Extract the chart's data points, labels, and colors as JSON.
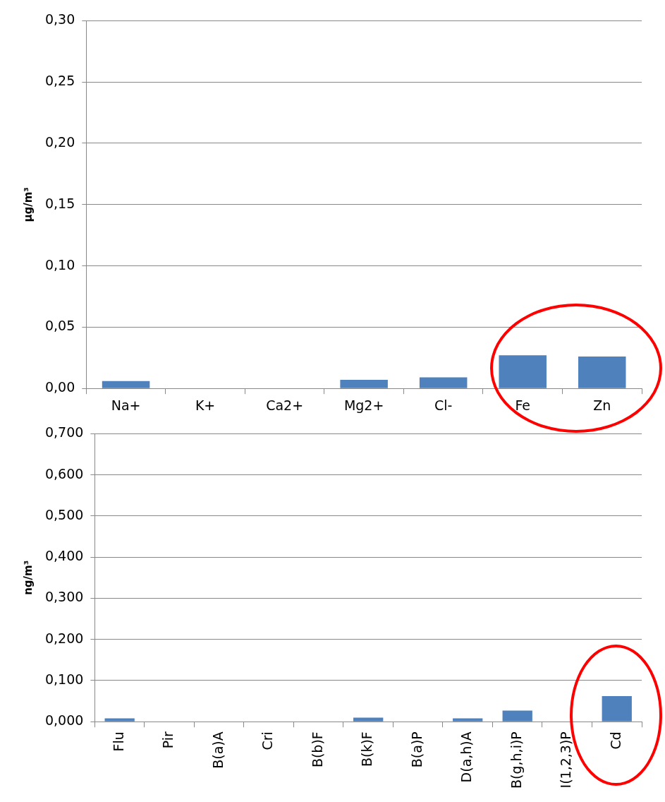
{
  "chart_data": [
    {
      "type": "bar",
      "ylabel": "µg/m³",
      "categories": [
        "Na+",
        "K+",
        "Ca2+",
        "Mg2+",
        "Cl-",
        "Fe",
        "Zn"
      ],
      "values": [
        0.006,
        0,
        0,
        0.007,
        0.009,
        0.027,
        0.026
      ],
      "color": "#4f81bd",
      "ylim": [
        0,
        0.3
      ],
      "yticks": [
        {
          "value": 0,
          "label": "0,00"
        },
        {
          "value": 0.05,
          "label": "0,05"
        },
        {
          "value": 0.1,
          "label": "0,10"
        },
        {
          "value": 0.15,
          "label": "0,15"
        },
        {
          "value": 0.2,
          "label": "0,20"
        },
        {
          "value": 0.25,
          "label": "0,25"
        },
        {
          "value": 0.3,
          "label": "0,30"
        }
      ],
      "grid": "y",
      "legend": false
    },
    {
      "type": "bar",
      "ylabel": "ng/m³",
      "categories": [
        "Flu",
        "Pir",
        "B(a)A",
        "Cri",
        "B(b)F",
        "B(k)F",
        "B(a)P",
        "D(a,h)A",
        "B(g,h,i)P",
        "I(1,2,3)P",
        "Cd"
      ],
      "values": [
        0.008,
        0,
        0,
        0,
        0,
        0.01,
        0,
        0.008,
        0.027,
        0,
        0.062
      ],
      "color": "#4f81bd",
      "ylim": [
        0,
        0.7
      ],
      "yticks": [
        {
          "value": 0,
          "label": "0,000"
        },
        {
          "value": 0.1,
          "label": "0,100"
        },
        {
          "value": 0.2,
          "label": "0,200"
        },
        {
          "value": 0.3,
          "label": "0,300"
        },
        {
          "value": 0.4,
          "label": "0,400"
        },
        {
          "value": 0.5,
          "label": "0,500"
        },
        {
          "value": 0.6,
          "label": "0,600"
        },
        {
          "value": 0.7,
          "label": "0,700"
        }
      ],
      "grid": "y",
      "legend": false
    }
  ]
}
